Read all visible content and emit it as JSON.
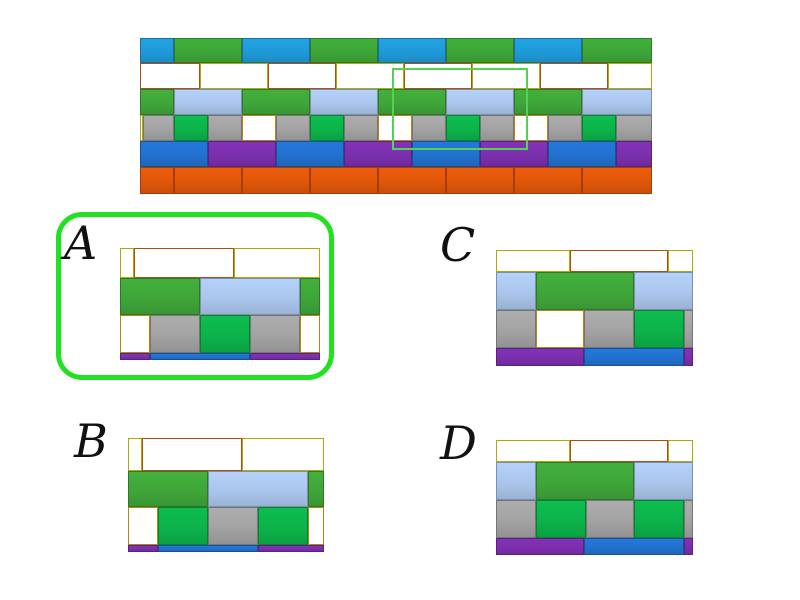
{
  "colors": {
    "blue": "#1f9ad8",
    "green": "#3fa63a",
    "orange": "#f26d1c",
    "yellow": "#f4ec0a",
    "lightblue": "#aac6ec",
    "dkgreen": "#0cb34a",
    "gray": "#a3a3a3",
    "gold": "#fcbd12",
    "royal": "#2271cf",
    "purple": "#7b2fad",
    "rust": "#e0570a",
    "highlight": "#54d254",
    "select": "#22e022"
  },
  "puzzle": {
    "rows": [
      {
        "h": 25,
        "bricks": [
          [
            "blue",
            0,
            34
          ],
          [
            "green",
            34,
            68
          ],
          [
            "blue",
            102,
            68
          ],
          [
            "green",
            170,
            68
          ],
          [
            "blue",
            238,
            68
          ],
          [
            "green",
            306,
            68
          ],
          [
            "blue",
            374,
            68
          ],
          [
            "green",
            442,
            70
          ]
        ]
      },
      {
        "h": 26,
        "bricks": [
          [
            "orange",
            0,
            60
          ],
          [
            "yellow",
            60,
            68
          ],
          [
            "orange",
            128,
            68
          ],
          [
            "yellow",
            196,
            68
          ],
          [
            "orange",
            264,
            68
          ],
          [
            "yellow",
            332,
            68
          ],
          [
            "orange",
            400,
            68
          ],
          [
            "yellow",
            468,
            44
          ]
        ]
      },
      {
        "h": 26,
        "bricks": [
          [
            "green",
            0,
            34
          ],
          [
            "lightblue",
            34,
            68
          ],
          [
            "green",
            102,
            68
          ],
          [
            "lightblue",
            170,
            68
          ],
          [
            "green",
            238,
            68
          ],
          [
            "lightblue",
            306,
            68
          ],
          [
            "green",
            374,
            68
          ],
          [
            "lightblue",
            442,
            70
          ]
        ]
      },
      {
        "h": 26,
        "bricks": [
          [
            "yellow",
            0,
            3
          ],
          [
            "gray",
            3,
            31
          ],
          [
            "dkgreen",
            34,
            34
          ],
          [
            "gray",
            68,
            34
          ],
          [
            "gold",
            102,
            34
          ],
          [
            "gray",
            136,
            34
          ],
          [
            "dkgreen",
            170,
            34
          ],
          [
            "gray",
            204,
            34
          ],
          [
            "gold",
            238,
            34
          ],
          [
            "gray",
            272,
            34
          ],
          [
            "dkgreen",
            306,
            34
          ],
          [
            "gray",
            340,
            34
          ],
          [
            "gold",
            374,
            34
          ],
          [
            "gray",
            408,
            34
          ],
          [
            "dkgreen",
            442,
            34
          ],
          [
            "gray",
            476,
            36
          ]
        ]
      },
      {
        "h": 26,
        "bricks": [
          [
            "royal",
            0,
            68
          ],
          [
            "purple",
            68,
            68
          ],
          [
            "royal",
            136,
            68
          ],
          [
            "purple",
            204,
            68
          ],
          [
            "royal",
            272,
            68
          ],
          [
            "purple",
            340,
            68
          ],
          [
            "royal",
            408,
            68
          ],
          [
            "purple",
            476,
            36
          ]
        ]
      },
      {
        "h": 27,
        "bricks": [
          [
            "rust",
            0,
            34
          ],
          [
            "rust",
            34,
            68
          ],
          [
            "rust",
            102,
            68
          ],
          [
            "rust",
            170,
            68
          ],
          [
            "rust",
            238,
            68
          ],
          [
            "rust",
            306,
            68
          ],
          [
            "rust",
            374,
            68
          ],
          [
            "rust",
            442,
            70
          ]
        ]
      }
    ]
  },
  "options": [
    {
      "letter": "A",
      "selected": true,
      "rows": [
        {
          "h": 30,
          "bricks": [
            [
              "yellow",
              0,
              14
            ],
            [
              "orange",
              14,
              100
            ],
            [
              "yellow",
              114,
              86
            ]
          ]
        },
        {
          "h": 37,
          "bricks": [
            [
              "green",
              0,
              80
            ],
            [
              "lightblue",
              80,
              100
            ],
            [
              "green",
              180,
              20
            ]
          ]
        },
        {
          "h": 38,
          "bricks": [
            [
              "gold",
              0,
              30
            ],
            [
              "gray",
              30,
              50
            ],
            [
              "dkgreen",
              80,
              50
            ],
            [
              "gray",
              130,
              50
            ],
            [
              "gold",
              180,
              20
            ]
          ]
        },
        {
          "h": 7,
          "bricks": [
            [
              "purple",
              0,
              30
            ],
            [
              "royal",
              30,
              100
            ],
            [
              "purple",
              130,
              70
            ]
          ]
        }
      ]
    },
    {
      "letter": "B",
      "selected": false,
      "rows": [
        {
          "h": 33,
          "bricks": [
            [
              "yellow",
              0,
              14
            ],
            [
              "orange",
              14,
              100
            ],
            [
              "yellow",
              114,
              82
            ]
          ]
        },
        {
          "h": 36,
          "bricks": [
            [
              "green",
              0,
              80
            ],
            [
              "lightblue",
              80,
              100
            ],
            [
              "green",
              180,
              16
            ]
          ]
        },
        {
          "h": 38,
          "bricks": [
            [
              "gold",
              0,
              30
            ],
            [
              "dkgreen",
              30,
              50
            ],
            [
              "gray",
              80,
              50
            ],
            [
              "dkgreen",
              130,
              50
            ],
            [
              "gold",
              180,
              16
            ]
          ]
        },
        {
          "h": 7,
          "bricks": [
            [
              "purple",
              0,
              30
            ],
            [
              "royal",
              30,
              100
            ],
            [
              "purple",
              130,
              66
            ]
          ]
        }
      ]
    },
    {
      "letter": "C",
      "selected": false,
      "rows": [
        {
          "h": 22,
          "bricks": [
            [
              "yellow",
              0,
              74
            ],
            [
              "orange",
              74,
              98
            ],
            [
              "yellow",
              172,
              25
            ]
          ]
        },
        {
          "h": 38,
          "bricks": [
            [
              "lightblue",
              0,
              40
            ],
            [
              "green",
              40,
              98
            ],
            [
              "lightblue",
              138,
              59
            ]
          ]
        },
        {
          "h": 38,
          "bricks": [
            [
              "gray",
              0,
              40
            ],
            [
              "gold",
              40,
              48
            ],
            [
              "gray",
              88,
              50
            ],
            [
              "dkgreen",
              138,
              50
            ],
            [
              "gray",
              188,
              9
            ]
          ]
        },
        {
          "h": 18,
          "bricks": [
            [
              "purple",
              0,
              88
            ],
            [
              "royal",
              88,
              100
            ],
            [
              "purple",
              188,
              9
            ]
          ]
        }
      ]
    },
    {
      "letter": "D",
      "selected": false,
      "rows": [
        {
          "h": 22,
          "bricks": [
            [
              "yellow",
              0,
              74
            ],
            [
              "orange",
              74,
              98
            ],
            [
              "yellow",
              172,
              25
            ]
          ]
        },
        {
          "h": 38,
          "bricks": [
            [
              "lightblue",
              0,
              40
            ],
            [
              "green",
              40,
              98
            ],
            [
              "lightblue",
              138,
              59
            ]
          ]
        },
        {
          "h": 38,
          "bricks": [
            [
              "gray",
              0,
              40
            ],
            [
              "dkgreen",
              40,
              50
            ],
            [
              "gray",
              90,
              48
            ],
            [
              "dkgreen",
              138,
              50
            ],
            [
              "gray",
              188,
              9
            ]
          ]
        },
        {
          "h": 17,
          "bricks": [
            [
              "purple",
              0,
              88
            ],
            [
              "royal",
              88,
              100
            ],
            [
              "purple",
              188,
              9
            ]
          ]
        }
      ]
    }
  ]
}
